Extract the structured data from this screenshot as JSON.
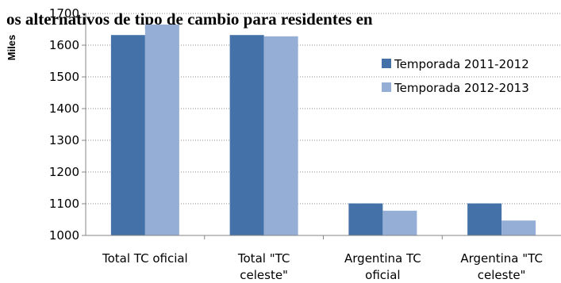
{
  "chart_data": {
    "type": "bar",
    "title": "os alternativos de tipo de cambio para residentes en",
    "ylabel": "Miles",
    "xlabel": "",
    "ylim": [
      1000,
      1700
    ],
    "yticks": [
      "1000",
      "1100",
      "1200",
      "1300",
      "1400",
      "1500",
      "1600",
      "1700"
    ],
    "grid": true,
    "legend_position": "right",
    "categories": [
      [
        "Total TC oficial"
      ],
      [
        "Total \"TC",
        "celeste\""
      ],
      [
        "Argentina TC",
        "oficial"
      ],
      [
        "Argentina \"TC",
        "celeste\""
      ]
    ],
    "series": [
      {
        "name": "Temporada 2011-2012",
        "color": "#4472a8",
        "values": [
          1632,
          1632,
          1101,
          1101
        ]
      },
      {
        "name": "Temporada 2012-2013",
        "color": "#95aed6",
        "values": [
          1665,
          1628,
          1078,
          1047
        ]
      }
    ]
  }
}
